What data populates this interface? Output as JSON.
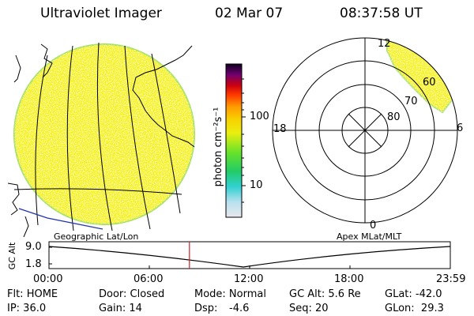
{
  "header": {
    "title": "Ultraviolet Imager",
    "date": "02 Mar 07",
    "time": "08:37:58 UT"
  },
  "colorbar": {
    "label": "photon cm⁻²s⁻¹",
    "ticks": [
      "100",
      "10"
    ]
  },
  "polar_plot": {
    "mlt_labels": [
      "12",
      "18",
      "6",
      "0"
    ],
    "lat_labels": [
      "60",
      "70",
      "80"
    ]
  },
  "lower_panel": {
    "left_title": "Geographic Lat/Lon",
    "right_title": "Apex MLat/MLT",
    "y_label": "GC Alt",
    "y_ticks": [
      "9.0",
      "1.8"
    ],
    "x_ticks": [
      "00:00",
      "06:00",
      "12:00",
      "18:00",
      "23:59"
    ],
    "current_time_fraction": 0.35
  },
  "status": {
    "flt": "Flt: HOME",
    "ip": "IP: 36.0",
    "door": "Door: Closed",
    "gain": "Gain: 14",
    "mode": "Mode: Normal",
    "dsp": "Dsp:",
    "dsp_value": "-4.6",
    "gc_alt": "GC Alt: 5.6 Re",
    "seq": "Seq: 20",
    "glat": "GLat: -42.0",
    "glon": "GLon:  29.3"
  },
  "colors": {
    "aurora_yellow": "#f4f018",
    "aurora_edge": "#a8e05a",
    "axis_red": "#cc2222",
    "map_blue": "#2233aa"
  }
}
